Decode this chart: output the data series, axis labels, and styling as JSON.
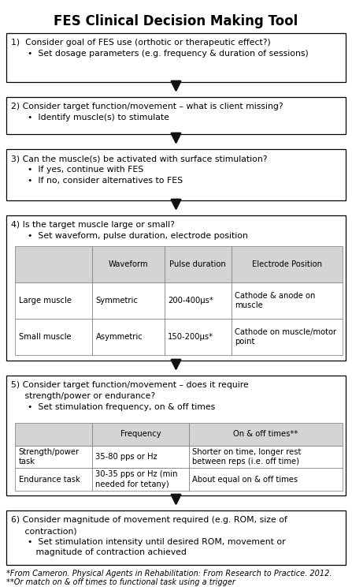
{
  "title": "FES Clinical Decision Making Tool",
  "title_fontsize": 12,
  "title_fontweight": "bold",
  "background_color": "#ffffff",
  "box_edge_color": "#000000",
  "box_face_color": "#ffffff",
  "arrow_color": "#111111",
  "text_color": "#000000",
  "header_bg": "#d4d4d4",
  "body_fontsize": 7.8,
  "table_fontsize": 7.2,
  "footnote_fontsize": 7.0,
  "footnote1": "*From Cameron. Physical Agents in Rehabilitation: From Research to Practice. 2012.",
  "footnote2": "**Or match on & off times to functional task using a trigger"
}
